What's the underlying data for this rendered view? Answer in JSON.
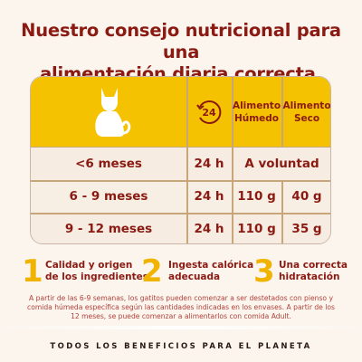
{
  "title": {
    "line1": "Nuestro consejo nutricional para una",
    "line2": "alimentación diaria correcta."
  },
  "table": {
    "header": {
      "cat_icon": "cat-icon",
      "clock_icon": "24h-clock-icon",
      "clock_label": "24",
      "wet_label": "Alimento Húmedo",
      "dry_label": "Alimento Seco"
    },
    "rows": [
      {
        "age": "<6 meses",
        "time": "24 h",
        "wet": "",
        "dry": "",
        "merged": "A voluntad"
      },
      {
        "age": "6 - 9 meses",
        "time": "24 h",
        "wet": "110 g",
        "dry": "40 g"
      },
      {
        "age": "9 - 12 meses",
        "time": "24 h",
        "wet": "110 g",
        "dry": "35 g"
      }
    ]
  },
  "benefits": [
    {
      "number": "1",
      "text_line1": "Calidad y origen",
      "text_line2": "de los ingredientes"
    },
    {
      "number": "2",
      "text_line1": "Ingesta calórica",
      "text_line2": "adecuada"
    },
    {
      "number": "3",
      "text_line1": "Una correcta",
      "text_line2": "hidratación"
    }
  ],
  "note": "A partir de las 6-9 semanas, los gatitos pueden comenzar a ser destetados con pienso y comida húmeda específica según las cantidades indicadas en los envases. A partir de los 12 meses, se puede comenzar a alimentarlos con comida Adult.",
  "footer": "TODOS LOS BENEFICIOS PARA EL PLANETA",
  "colors": {
    "accent_yellow": "#f4c200",
    "brand_red": "#8a1a12",
    "background": "#fbf5ee"
  }
}
